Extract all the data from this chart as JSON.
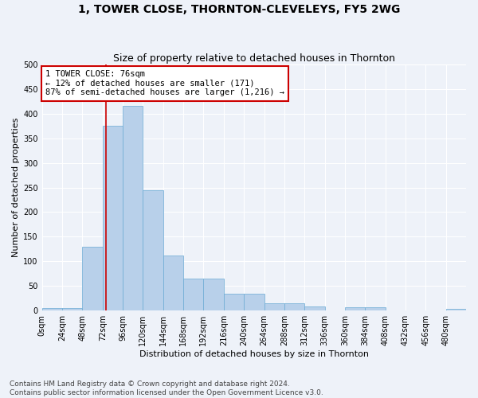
{
  "title": "1, TOWER CLOSE, THORNTON-CLEVELEYS, FY5 2WG",
  "subtitle": "Size of property relative to detached houses in Thornton",
  "xlabel": "Distribution of detached houses by size in Thornton",
  "ylabel": "Number of detached properties",
  "bin_labels": [
    "0sqm",
    "24sqm",
    "48sqm",
    "72sqm",
    "96sqm",
    "120sqm",
    "144sqm",
    "168sqm",
    "192sqm",
    "216sqm",
    "240sqm",
    "264sqm",
    "288sqm",
    "312sqm",
    "336sqm",
    "360sqm",
    "384sqm",
    "408sqm",
    "432sqm",
    "456sqm",
    "480sqm"
  ],
  "bar_values": [
    5,
    5,
    130,
    375,
    415,
    245,
    112,
    65,
    65,
    35,
    35,
    15,
    15,
    8,
    0,
    7,
    7,
    0,
    0,
    0,
    3
  ],
  "bar_color": "#b8d0ea",
  "bar_edge_color": "#6aaad4",
  "property_line_x": 76,
  "bin_width": 24,
  "ylim": [
    0,
    500
  ],
  "annotation_text": "1 TOWER CLOSE: 76sqm\n← 12% of detached houses are smaller (171)\n87% of semi-detached houses are larger (1,216) →",
  "annotation_box_color": "#ffffff",
  "annotation_box_edge": "#cc0000",
  "red_line_color": "#cc0000",
  "footer_text": "Contains HM Land Registry data © Crown copyright and database right 2024.\nContains public sector information licensed under the Open Government Licence v3.0.",
  "background_color": "#eef2f9",
  "grid_color": "#ffffff",
  "title_fontsize": 10,
  "subtitle_fontsize": 9,
  "label_fontsize": 8,
  "tick_fontsize": 7,
  "footer_fontsize": 6.5,
  "annotation_fontsize": 7.5
}
